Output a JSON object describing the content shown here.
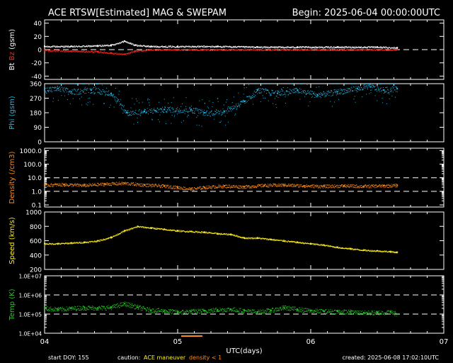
{
  "header": {
    "title": "ACE RTSW[Estimated] MAG & SWEPAM",
    "begin": "Begin: 2025-06-04 00:00:00UTC"
  },
  "footer": {
    "start_doy": "start DOY: 155",
    "caution_label": "caution:",
    "caution_maneuver": "ACE maneuver",
    "caution_density": "density < 1",
    "created": "created: 2025-06-08 17:02:10UTC"
  },
  "colors": {
    "background": "#000000",
    "axes": "#ffffff",
    "bt": "#ffffff",
    "bz": "#ff2020",
    "phi": "#22b8e8",
    "density": "#ff8c1a",
    "speed": "#ffee22",
    "temp": "#22cc22"
  },
  "chart_data": [
    {
      "type": "scatter",
      "ylabel": "Bt Bz (gsm)",
      "ylabel_parts": [
        "Bt",
        "Bz",
        "(gsm)"
      ],
      "ylim": [
        -45,
        45
      ],
      "yticks": [
        40,
        20,
        0,
        -20,
        -40
      ],
      "ref_lines": [
        0
      ],
      "xlim": [
        4,
        7
      ],
      "series": [
        {
          "name": "Bt",
          "x": [
            4.0,
            4.2,
            4.4,
            4.5,
            4.6,
            4.68,
            4.8,
            5.0,
            5.3,
            5.6,
            5.9,
            6.2,
            6.5,
            6.65
          ],
          "y": [
            5,
            5,
            6,
            7,
            13,
            7,
            5,
            5,
            5,
            4,
            4,
            4,
            4,
            3
          ]
        },
        {
          "name": "Bz",
          "x": [
            4.0,
            4.2,
            4.4,
            4.5,
            4.6,
            4.68,
            4.8,
            5.0,
            5.3,
            5.6,
            5.9,
            6.2,
            6.5,
            6.65
          ],
          "y": [
            -1,
            -2,
            -3,
            -5,
            -7,
            -2,
            0,
            0,
            0,
            0,
            0,
            0,
            0,
            0
          ]
        }
      ]
    },
    {
      "type": "scatter",
      "ylabel": "Phi (gsm)",
      "ylim": [
        0,
        360
      ],
      "yticks": [
        360,
        270,
        180,
        90,
        0
      ],
      "ref_lines": [],
      "xlim": [
        4,
        7
      ],
      "series": [
        {
          "name": "Phi",
          "x": [
            4.0,
            4.1,
            4.2,
            4.35,
            4.5,
            4.62,
            4.75,
            4.9,
            5.1,
            5.2,
            5.35,
            5.5,
            5.6,
            5.75,
            5.9,
            6.05,
            6.2,
            6.35,
            6.45,
            6.55,
            6.65
          ],
          "y": [
            320,
            330,
            310,
            320,
            300,
            180,
            190,
            200,
            200,
            180,
            190,
            250,
            320,
            300,
            320,
            290,
            310,
            330,
            340,
            320,
            330
          ]
        }
      ]
    },
    {
      "type": "scatter",
      "ylabel": "Density (/cm3)",
      "yscale": "log",
      "ylim": [
        0.07,
        1500
      ],
      "yticks": [
        1000.0,
        100.0,
        10.0,
        1.0,
        0.1
      ],
      "ytick_labels": [
        "1000.0",
        "100.0",
        "10.0",
        "1.0",
        "0.1"
      ],
      "ref_lines": [
        1,
        10
      ],
      "xlim": [
        4,
        7
      ],
      "series": [
        {
          "name": "Density",
          "x": [
            4.0,
            4.15,
            4.3,
            4.45,
            4.6,
            4.75,
            4.9,
            5.0,
            5.1,
            5.2,
            5.35,
            5.5,
            5.65,
            5.8,
            5.95,
            6.1,
            6.25,
            6.4,
            6.55,
            6.65
          ],
          "y": [
            3.0,
            3.2,
            2.8,
            3.5,
            4.0,
            3.0,
            2.5,
            2.0,
            1.5,
            2.0,
            2.5,
            2.2,
            2.8,
            3.0,
            2.6,
            2.4,
            2.6,
            2.4,
            2.6,
            2.8
          ]
        }
      ]
    },
    {
      "type": "scatter",
      "ylabel": "Speed (km/s)",
      "ylim": [
        200,
        1000
      ],
      "yticks": [
        1000,
        800,
        600,
        400,
        200
      ],
      "ref_lines": [],
      "xlim": [
        4,
        7
      ],
      "series": [
        {
          "name": "Speed",
          "x": [
            4.0,
            4.1,
            4.2,
            4.3,
            4.4,
            4.5,
            4.6,
            4.7,
            4.8,
            4.9,
            5.0,
            5.1,
            5.2,
            5.3,
            5.4,
            5.5,
            5.6,
            5.7,
            5.8,
            5.9,
            6.0,
            6.1,
            6.2,
            6.3,
            6.4,
            6.5,
            6.6,
            6.65
          ],
          "y": [
            560,
            560,
            570,
            580,
            600,
            650,
            740,
            800,
            780,
            760,
            740,
            730,
            720,
            700,
            690,
            640,
            640,
            620,
            600,
            580,
            560,
            540,
            510,
            490,
            470,
            460,
            450,
            440
          ]
        }
      ]
    },
    {
      "type": "scatter",
      "ylabel": "Temp (K)",
      "yscale": "log",
      "ylim": [
        10000,
        10000000
      ],
      "yticks": [
        10000000,
        1000000,
        100000,
        10000
      ],
      "ytick_labels": [
        "1.0E+07",
        "1.0E+06",
        "1.0E+05",
        "1.0E+04"
      ],
      "ref_lines": [
        100000,
        1000000
      ],
      "xlim": [
        4,
        7
      ],
      "series": [
        {
          "name": "Temp",
          "x": [
            4.0,
            4.1,
            4.2,
            4.3,
            4.4,
            4.5,
            4.6,
            4.7,
            4.8,
            4.9,
            5.0,
            5.1,
            5.2,
            5.3,
            5.4,
            5.5,
            5.6,
            5.7,
            5.8,
            5.9,
            6.0,
            6.1,
            6.2,
            6.3,
            6.4,
            6.5,
            6.6,
            6.65
          ],
          "y": [
            200000,
            180000,
            200000,
            220000,
            210000,
            230000,
            350000,
            230000,
            160000,
            150000,
            130000,
            140000,
            150000,
            170000,
            180000,
            150000,
            130000,
            160000,
            220000,
            180000,
            150000,
            140000,
            140000,
            130000,
            120000,
            120000,
            130000,
            100000
          ]
        }
      ]
    }
  ],
  "x_axis": {
    "xlabel": "UTC(days)",
    "xlim": [
      4,
      7
    ],
    "ticks": [
      4,
      5,
      6,
      7
    ],
    "tick_labels": [
      "04",
      "05",
      "06",
      "07"
    ]
  }
}
